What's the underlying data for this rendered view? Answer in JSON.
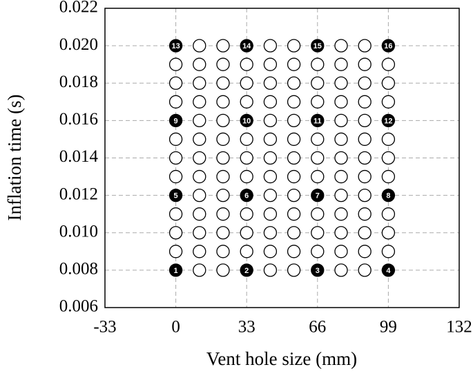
{
  "chart_data": {
    "type": "scatter",
    "xlabel": "Vent hole size (mm)",
    "ylabel": "Inflation time (s)",
    "xlim": [
      -33,
      132
    ],
    "xticks": [
      -33,
      0,
      33,
      66,
      99,
      132
    ],
    "ylim": [
      0.006,
      0.022
    ],
    "yticks": [
      0.006,
      0.008,
      {
        "value": 0.01,
        "label": "0.010"
      },
      0.012,
      0.014,
      0.016,
      0.018,
      {
        "value": 0.02,
        "label": "0.020"
      },
      0.022
    ],
    "grid": true,
    "series": [
      {
        "color": "#ffffff",
        "filled": false,
        "x": [
          11,
          22,
          44,
          55,
          77,
          88,
          0,
          11,
          22,
          33,
          44,
          55,
          66,
          77,
          88,
          99,
          0,
          11,
          22,
          33,
          44,
          55,
          66,
          77,
          88,
          99,
          0,
          11,
          22,
          33,
          44,
          55,
          66,
          77,
          88,
          99,
          11,
          22,
          44,
          55,
          77,
          88,
          0,
          11,
          22,
          33,
          44,
          55,
          66,
          77,
          88,
          99,
          0,
          11,
          22,
          33,
          44,
          55,
          66,
          77,
          88,
          99,
          0,
          11,
          22,
          33,
          44,
          55,
          66,
          77,
          88,
          99,
          11,
          22,
          44,
          55,
          77,
          88,
          0,
          11,
          22,
          33,
          44,
          55,
          66,
          77,
          88,
          99,
          0,
          11,
          22,
          33,
          44,
          55,
          66,
          77,
          88,
          99,
          0,
          11,
          22,
          33,
          44,
          55,
          66,
          77,
          88,
          99,
          11,
          22,
          44,
          55,
          77,
          88
        ],
        "y": [
          0.008,
          0.008,
          0.008,
          0.008,
          0.008,
          0.008,
          0.009,
          0.009,
          0.009,
          0.009,
          0.009,
          0.009,
          0.009,
          0.009,
          0.009,
          0.009,
          0.01,
          0.01,
          0.01,
          0.01,
          0.01,
          0.01,
          0.01,
          0.01,
          0.01,
          0.01,
          0.011,
          0.011,
          0.011,
          0.011,
          0.011,
          0.011,
          0.011,
          0.011,
          0.011,
          0.011,
          0.012,
          0.012,
          0.012,
          0.012,
          0.012,
          0.012,
          0.013,
          0.013,
          0.013,
          0.013,
          0.013,
          0.013,
          0.013,
          0.013,
          0.013,
          0.013,
          0.014,
          0.014,
          0.014,
          0.014,
          0.014,
          0.014,
          0.014,
          0.014,
          0.014,
          0.014,
          0.015,
          0.015,
          0.015,
          0.015,
          0.015,
          0.015,
          0.015,
          0.015,
          0.015,
          0.015,
          0.016,
          0.016,
          0.016,
          0.016,
          0.016,
          0.016,
          0.017,
          0.017,
          0.017,
          0.017,
          0.017,
          0.017,
          0.017,
          0.017,
          0.017,
          0.017,
          0.018,
          0.018,
          0.018,
          0.018,
          0.018,
          0.018,
          0.018,
          0.018,
          0.018,
          0.018,
          0.019,
          0.019,
          0.019,
          0.019,
          0.019,
          0.019,
          0.019,
          0.019,
          0.019,
          0.019,
          0.02,
          0.02,
          0.02,
          0.02,
          0.02,
          0.02
        ]
      },
      {
        "color": "#000000",
        "filled": true,
        "x": [
          0,
          33,
          66,
          99,
          0,
          33,
          66,
          99,
          0,
          33,
          66,
          99,
          0,
          33,
          66,
          99
        ],
        "y": [
          0.008,
          0.008,
          0.008,
          0.008,
          0.012,
          0.012,
          0.012,
          0.012,
          0.016,
          0.016,
          0.016,
          0.016,
          0.02,
          0.02,
          0.02,
          0.02
        ],
        "point_labels": [
          "1",
          "2",
          "3",
          "4",
          "5",
          "6",
          "7",
          "8",
          "9",
          "10",
          "11",
          "12",
          "13",
          "14",
          "15",
          "16"
        ]
      }
    ]
  }
}
